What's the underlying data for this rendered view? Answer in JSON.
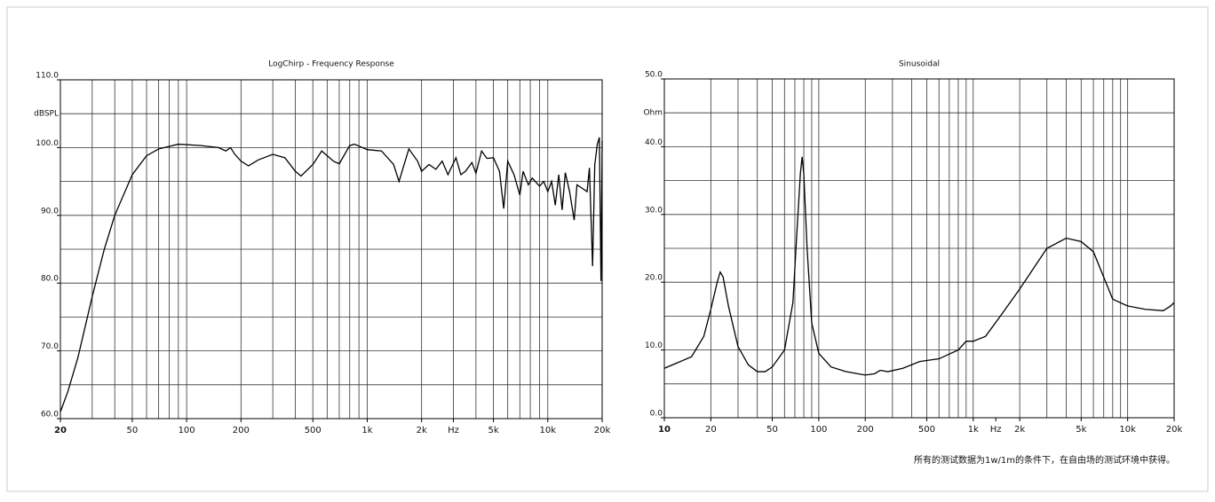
{
  "chart_data": [
    {
      "type": "line",
      "title": "LogChirp - Frequency Response",
      "ylabel": "dBSPL",
      "color": "#000000",
      "log_x": true,
      "xlim": [
        20,
        20000
      ],
      "ylim": [
        60,
        110
      ],
      "xticks": [
        20,
        50,
        100,
        200,
        500,
        {
          "value": 1000,
          "label": "1k"
        },
        {
          "value": 2000,
          "label": "2k"
        },
        {
          "value": 3000,
          "label": "Hz"
        },
        {
          "value": 5000,
          "label": "5k"
        },
        {
          "value": 10000,
          "label": "10k"
        },
        {
          "value": 20000,
          "label": "20k"
        }
      ],
      "yticks": [
        {
          "value": 60,
          "label": "60.0"
        },
        {
          "value": 70,
          "label": "70.0"
        },
        {
          "value": 80,
          "label": "80.0"
        },
        {
          "value": 90,
          "label": "90.0"
        },
        {
          "value": 100,
          "label": "100.0"
        },
        {
          "value": 110,
          "label": "110.0"
        }
      ],
      "xgrid": [
        30,
        40,
        50,
        60,
        70,
        80,
        90,
        100,
        200,
        300,
        400,
        500,
        600,
        700,
        800,
        900,
        1000,
        2000,
        3000,
        4000,
        5000,
        6000,
        7000,
        8000,
        9000,
        10000
      ],
      "ygrid": [
        65,
        70,
        75,
        80,
        85,
        90,
        95,
        100,
        105
      ],
      "x": [
        20,
        22,
        25,
        30,
        35,
        40,
        50,
        60,
        70,
        90,
        120,
        150,
        165,
        175,
        185,
        200,
        220,
        250,
        300,
        350,
        400,
        430,
        500,
        560,
        650,
        700,
        800,
        850,
        1000,
        1200,
        1400,
        1500,
        1700,
        1900,
        2000,
        2200,
        2400,
        2600,
        2800,
        3100,
        3300,
        3500,
        3800,
        4000,
        4300,
        4600,
        5000,
        5400,
        5700,
        6000,
        6500,
        7000,
        7300,
        7800,
        8200,
        9000,
        9500,
        10000,
        10500,
        11000,
        11500,
        12000,
        12500,
        13200,
        14000,
        14500,
        15500,
        16500,
        17000,
        17700,
        18200,
        18800,
        19300,
        19700,
        20000
      ],
      "values": [
        61,
        64,
        69,
        78,
        85,
        90,
        96,
        98.8,
        99.8,
        100.5,
        100.3,
        100,
        99.5,
        100,
        99,
        98,
        97.3,
        98.2,
        99,
        98.5,
        96.5,
        95.8,
        97.5,
        99.5,
        98,
        97.6,
        100.3,
        100.5,
        99.7,
        99.5,
        97.5,
        95,
        99.8,
        98,
        96.5,
        97.5,
        96.8,
        98,
        96,
        98.5,
        96,
        96.5,
        97.8,
        96.2,
        99.5,
        98.4,
        98.5,
        96.5,
        91,
        98,
        96,
        93,
        96.5,
        94.5,
        95.5,
        94.3,
        95,
        93.5,
        95,
        91.5,
        96,
        90.8,
        96.3,
        93.5,
        89.3,
        94.5,
        94,
        93.5,
        97,
        82.5,
        97.5,
        100.5,
        101.5,
        80.3,
        101
      ]
    },
    {
      "type": "line",
      "title": "Sinusoidal",
      "ylabel": "Ohm",
      "color": "#000000",
      "log_x": true,
      "xlim": [
        10,
        20000
      ],
      "ylim": [
        0,
        50
      ],
      "xticks": [
        10,
        20,
        50,
        100,
        200,
        500,
        {
          "value": 1000,
          "label": "1k"
        },
        {
          "value": 1400,
          "label": "Hz"
        },
        {
          "value": 2000,
          "label": "2k"
        },
        {
          "value": 5000,
          "label": "5k"
        },
        {
          "value": 10000,
          "label": "10k"
        },
        {
          "value": 20000,
          "label": "20k"
        }
      ],
      "yticks": [
        {
          "value": 0,
          "label": "0.0"
        },
        {
          "value": 10,
          "label": "10.0"
        },
        {
          "value": 20,
          "label": "20.0"
        },
        {
          "value": 30,
          "label": "30.0"
        },
        {
          "value": 40,
          "label": "40.0"
        },
        {
          "value": 50,
          "label": "50.0"
        }
      ],
      "xgrid": [
        20,
        30,
        40,
        50,
        60,
        70,
        80,
        90,
        100,
        200,
        300,
        400,
        500,
        600,
        700,
        800,
        900,
        1000,
        2000,
        3000,
        4000,
        5000,
        6000,
        7000,
        8000,
        9000,
        10000
      ],
      "ygrid": [
        5,
        10,
        15,
        20,
        25,
        30,
        35,
        40,
        45
      ],
      "x": [
        10,
        15,
        18,
        20,
        22,
        23,
        24,
        26,
        30,
        35,
        40,
        45,
        50,
        60,
        68,
        72,
        76,
        78,
        80,
        84,
        90,
        100,
        120,
        150,
        200,
        230,
        250,
        280,
        350,
        450,
        600,
        800,
        900,
        1000,
        1200,
        1500,
        2000,
        3000,
        4000,
        5000,
        6000,
        8000,
        10000,
        13000,
        17000,
        19000,
        20000
      ],
      "values": [
        7.3,
        9,
        12,
        16,
        20,
        21.5,
        20.8,
        16.5,
        10.5,
        7.8,
        6.8,
        6.8,
        7.5,
        10,
        17,
        27,
        36,
        38.5,
        36,
        25,
        14,
        9.5,
        7.5,
        6.8,
        6.3,
        6.5,
        7,
        6.8,
        7.3,
        8.3,
        8.7,
        10,
        11.3,
        11.3,
        12,
        15,
        19,
        25,
        26.5,
        26,
        24.5,
        17.5,
        16.5,
        16,
        15.8,
        16.5,
        17
      ]
    }
  ],
  "note": "所有的测试数据为1w/1m的条件下，在自由场的测试环境中获得。"
}
